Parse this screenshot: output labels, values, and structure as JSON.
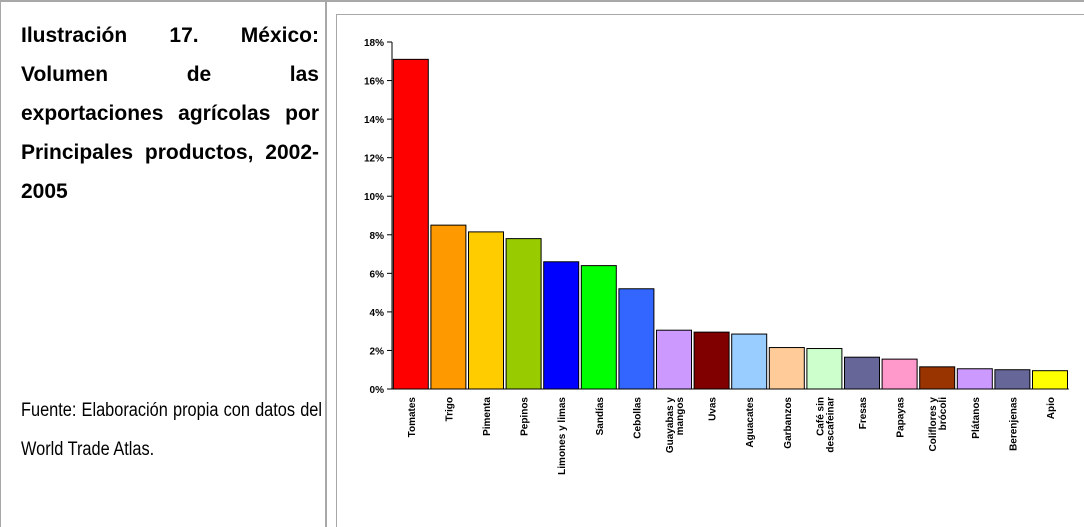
{
  "caption": {
    "title": "Ilustración 17. México: Volumen de las exportaciones agrícolas por Principales productos, 2002-2005",
    "source": "Fuente: Elaboración propia con datos del World Trade Atlas."
  },
  "chart_data": {
    "type": "bar",
    "title": "",
    "xlabel": "",
    "ylabel": "",
    "ylim": [
      0,
      18
    ],
    "y_ticks": [
      "0%",
      "2%",
      "4%",
      "6%",
      "8%",
      "10%",
      "12%",
      "14%",
      "16%",
      "18%"
    ],
    "grid": false,
    "categories": [
      "Tomates",
      "Trigo",
      "Pimenta",
      "Pepinos",
      "Limones y limas",
      "Sandías",
      "Cebollas",
      "Guayabas y mangos",
      "Uvas",
      "Aguacates",
      "Garbanzos",
      "Café sin descafeinar",
      "Fresas",
      "Papayas",
      "Coliflores y brócoli",
      "Plátanos",
      "Berenjenas",
      "Apio"
    ],
    "category_lines": [
      [
        "Tomates"
      ],
      [
        "Trigo"
      ],
      [
        "Pimenta"
      ],
      [
        "Pepinos"
      ],
      [
        "Limones y limas"
      ],
      [
        "Sandías"
      ],
      [
        "Cebollas"
      ],
      [
        "Guayabas y",
        "mangos"
      ],
      [
        "Uvas"
      ],
      [
        "Aguacates"
      ],
      [
        "Garbanzos"
      ],
      [
        "Café sin",
        "descafeinar"
      ],
      [
        "Fresas"
      ],
      [
        "Papayas"
      ],
      [
        "Coliflores y",
        "brócoli"
      ],
      [
        "Plátanos"
      ],
      [
        "Berenjenas"
      ],
      [
        "Apio"
      ]
    ],
    "values": [
      17.1,
      8.5,
      8.15,
      7.8,
      6.6,
      6.4,
      5.2,
      3.05,
      2.95,
      2.85,
      2.15,
      2.1,
      1.65,
      1.55,
      1.15,
      1.05,
      1.0,
      0.95
    ],
    "unit": "%",
    "colors": [
      "#ff0000",
      "#ff9900",
      "#ffcc00",
      "#99cc00",
      "#0000ff",
      "#00ff00",
      "#3366ff",
      "#cc99ff",
      "#800000",
      "#99ccff",
      "#ffcc99",
      "#ccffcc",
      "#666699",
      "#ff99cc",
      "#993300",
      "#cc99ff",
      "#666699",
      "#ffff00"
    ]
  }
}
